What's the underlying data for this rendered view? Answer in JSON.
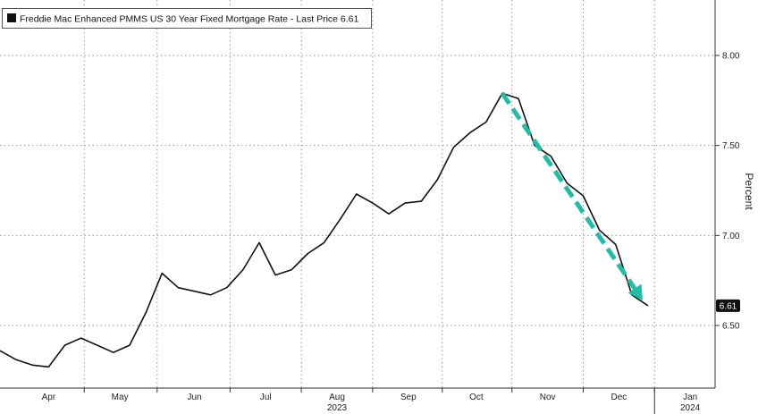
{
  "chart_data": {
    "type": "line",
    "legend": "Freddie Mac Enhanced PMMS US 30 Year Fixed Mortgage Rate - Last Price 6.61",
    "ylabel": "Percent",
    "ylim": [
      6.15,
      8.25
    ],
    "yticks": [
      {
        "value": 6.5,
        "label": "6.50"
      },
      {
        "value": 7.0,
        "label": "7.00"
      },
      {
        "value": 7.5,
        "label": "7.50"
      },
      {
        "value": 8.0,
        "label": "8.00"
      }
    ],
    "xlim": [
      0,
      40
    ],
    "month_ticks": [
      {
        "pos": 3.0,
        "label": "Apr"
      },
      {
        "pos": 7.4,
        "label": "May"
      },
      {
        "pos": 12.0,
        "label": "Jun"
      },
      {
        "pos": 16.4,
        "label": "Jul"
      },
      {
        "pos": 20.8,
        "label": "Aug"
      },
      {
        "pos": 25.2,
        "label": "Sep"
      },
      {
        "pos": 29.4,
        "label": "Oct"
      },
      {
        "pos": 33.8,
        "label": "Nov"
      },
      {
        "pos": 38.2,
        "label": "Dec"
      },
      {
        "pos": 42.6,
        "label": "Jan"
      }
    ],
    "year_labels": [
      {
        "pos": 20.8,
        "label": "2023"
      },
      {
        "pos": 42.6,
        "label": "2024"
      }
    ],
    "grid": true,
    "series": [
      {
        "name": "Freddie Mac Enhanced PMMS US 30 Year Fixed Mortgage Rate",
        "color": "#111111",
        "x": [
          0,
          1,
          2,
          3,
          4,
          5,
          6,
          7,
          8,
          9,
          10,
          11,
          12,
          13,
          14,
          15,
          16,
          17,
          18,
          19,
          20,
          21,
          22,
          23,
          24,
          25,
          26,
          27,
          28,
          29,
          30,
          31,
          32,
          33,
          34,
          35,
          36,
          37,
          38,
          39,
          40
        ],
        "values": [
          6.36,
          6.31,
          6.28,
          6.27,
          6.39,
          6.43,
          6.39,
          6.35,
          6.39,
          6.57,
          6.79,
          6.71,
          6.69,
          6.67,
          6.71,
          6.81,
          6.96,
          6.78,
          6.81,
          6.9,
          6.96,
          7.09,
          7.23,
          7.18,
          7.12,
          7.18,
          7.19,
          7.31,
          7.49,
          7.57,
          7.63,
          7.79,
          7.76,
          7.5,
          7.44,
          7.29,
          7.22,
          7.03,
          6.95,
          6.67,
          6.61
        ]
      }
    ],
    "last_price": {
      "value": 6.61,
      "label": "6.61",
      "color": "#111111"
    },
    "annotation": {
      "type": "dashed-arrow",
      "color": "#1fbea6",
      "from": [
        31,
        7.79
      ],
      "to": [
        40,
        6.61
      ]
    }
  }
}
